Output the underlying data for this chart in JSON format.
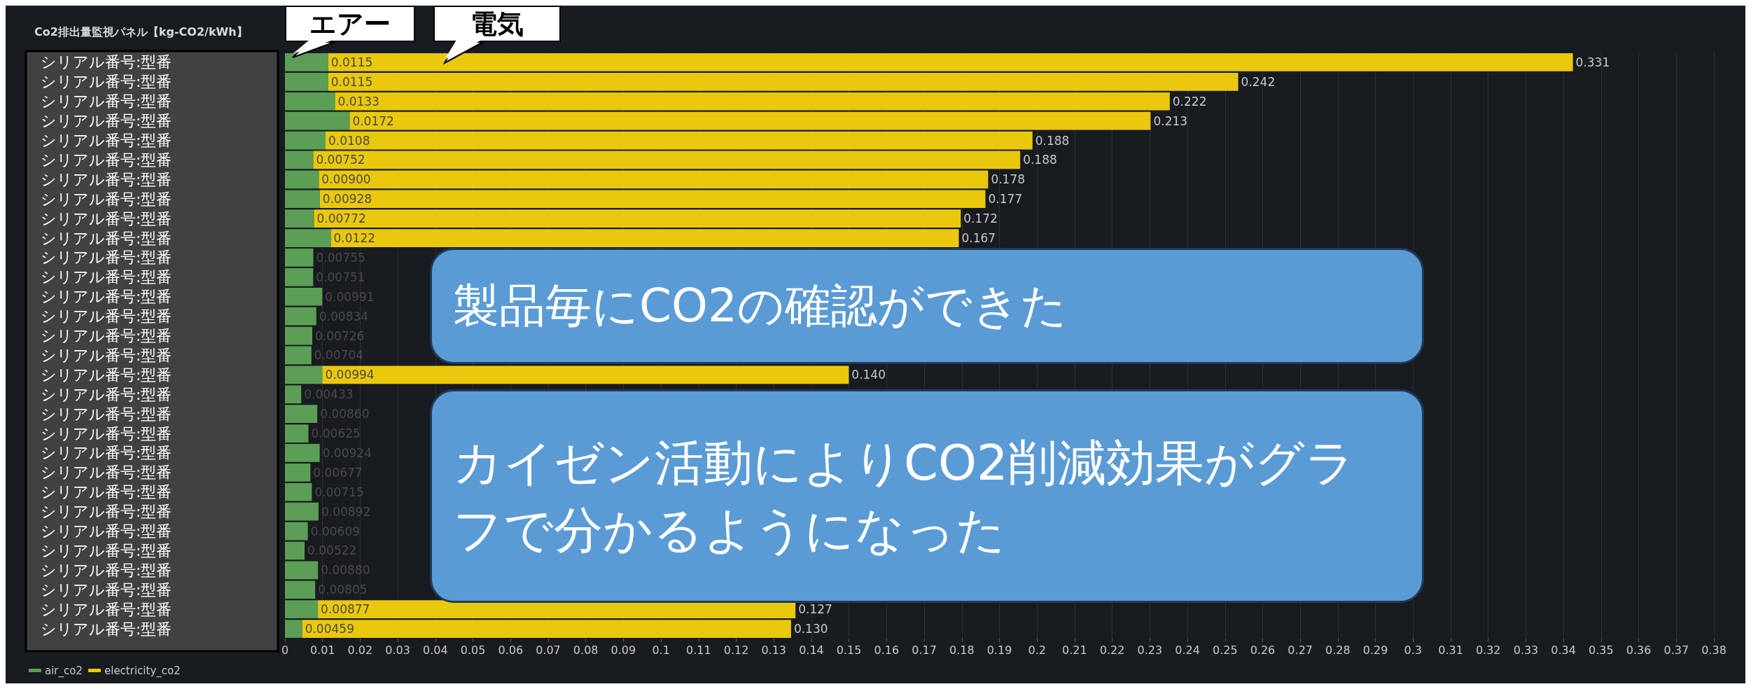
{
  "chart_data": {
    "type": "bar",
    "orientation": "horizontal",
    "stacked": true,
    "title": "Co2排出量監視パネル【kg-CO2/kWh】",
    "categories": [
      "シリアル番号:型番",
      "シリアル番号:型番",
      "シリアル番号:型番",
      "シリアル番号:型番",
      "シリアル番号:型番",
      "シリアル番号:型番",
      "シリアル番号:型番",
      "シリアル番号:型番",
      "シリアル番号:型番",
      "シリアル番号:型番",
      "シリアル番号:型番",
      "シリアル番号:型番",
      "シリアル番号:型番",
      "シリアル番号:型番",
      "シリアル番号:型番",
      "シリアル番号:型番",
      "シリアル番号:型番",
      "シリアル番号:型番",
      "シリアル番号:型番",
      "シリアル番号:型番",
      "シリアル番号:型番",
      "シリアル番号:型番",
      "シリアル番号:型番",
      "シリアル番号:型番",
      "シリアル番号:型番",
      "シリアル番号:型番",
      "シリアル番号:型番",
      "シリアル番号:型番",
      "シリアル番号:型番",
      "シリアル番号:型番"
    ],
    "series": [
      {
        "name": "air_co2",
        "color": "#5b9e56",
        "values": [
          0.0115,
          0.0115,
          0.0133,
          0.0172,
          0.0108,
          0.00752,
          0.009,
          0.00928,
          0.00772,
          0.0122,
          0.00755,
          0.00751,
          0.00991,
          0.00834,
          0.00726,
          0.00704,
          0.00994,
          0.00433,
          0.0086,
          0.00625,
          0.00924,
          0.00677,
          0.00715,
          0.00892,
          0.00609,
          0.00522,
          0.0088,
          0.00805,
          0.00877,
          0.00459
        ],
        "value_labels": [
          "0.0115",
          "0.0115",
          "0.0133",
          "0.0172",
          "0.0108",
          "0.00752",
          "0.00900",
          "0.00928",
          "0.00772",
          "0.0122",
          "0.00755",
          "0.00751",
          "0.00991",
          "0.00834",
          "0.00726",
          "0.00704",
          "0.00994",
          "0.00433",
          "0.00860",
          "0.00625",
          "0.00924",
          "0.00677",
          "0.00715",
          "0.00892",
          "0.00609",
          "0.00522",
          "0.00880",
          "0.00805",
          "0.00877",
          "0.00459"
        ]
      },
      {
        "name": "electricity_co2",
        "color": "#eac80d",
        "values": [
          0.331,
          0.242,
          0.222,
          0.213,
          0.188,
          0.188,
          0.178,
          0.177,
          0.172,
          0.167,
          null,
          null,
          null,
          null,
          null,
          null,
          0.14,
          null,
          null,
          null,
          null,
          null,
          null,
          null,
          null,
          null,
          null,
          null,
          0.127,
          0.13
        ],
        "value_labels": [
          "0.331",
          "0.242",
          "0.222",
          "0.213",
          "0.188",
          "0.188",
          "0.178",
          "0.177",
          "0.172",
          "0.167",
          null,
          null,
          null,
          null,
          null,
          null,
          "0.140",
          null,
          null,
          null,
          null,
          null,
          null,
          null,
          null,
          null,
          null,
          null,
          "0.127",
          "0.130"
        ]
      }
    ],
    "xlim": [
      0,
      0.38
    ],
    "xticks": [
      0,
      0.01,
      0.02,
      0.03,
      0.04,
      0.05,
      0.06,
      0.07,
      0.08,
      0.09,
      0.1,
      0.11,
      0.12,
      0.13,
      0.14,
      0.15,
      0.16,
      0.17,
      0.18,
      0.19,
      0.2,
      0.21,
      0.22,
      0.23,
      0.24,
      0.25,
      0.26,
      0.27,
      0.28,
      0.29,
      0.3,
      0.31,
      0.32,
      0.33,
      0.34,
      0.35,
      0.36,
      0.37,
      0.38
    ],
    "grid": "x",
    "legend": "bottom left",
    "annotations": [
      "エアー",
      "電気",
      "製品毎にCO2の確認ができた",
      "カイゼン活動によりCO2削減効果がグラフで分かるようになった"
    ]
  }
}
